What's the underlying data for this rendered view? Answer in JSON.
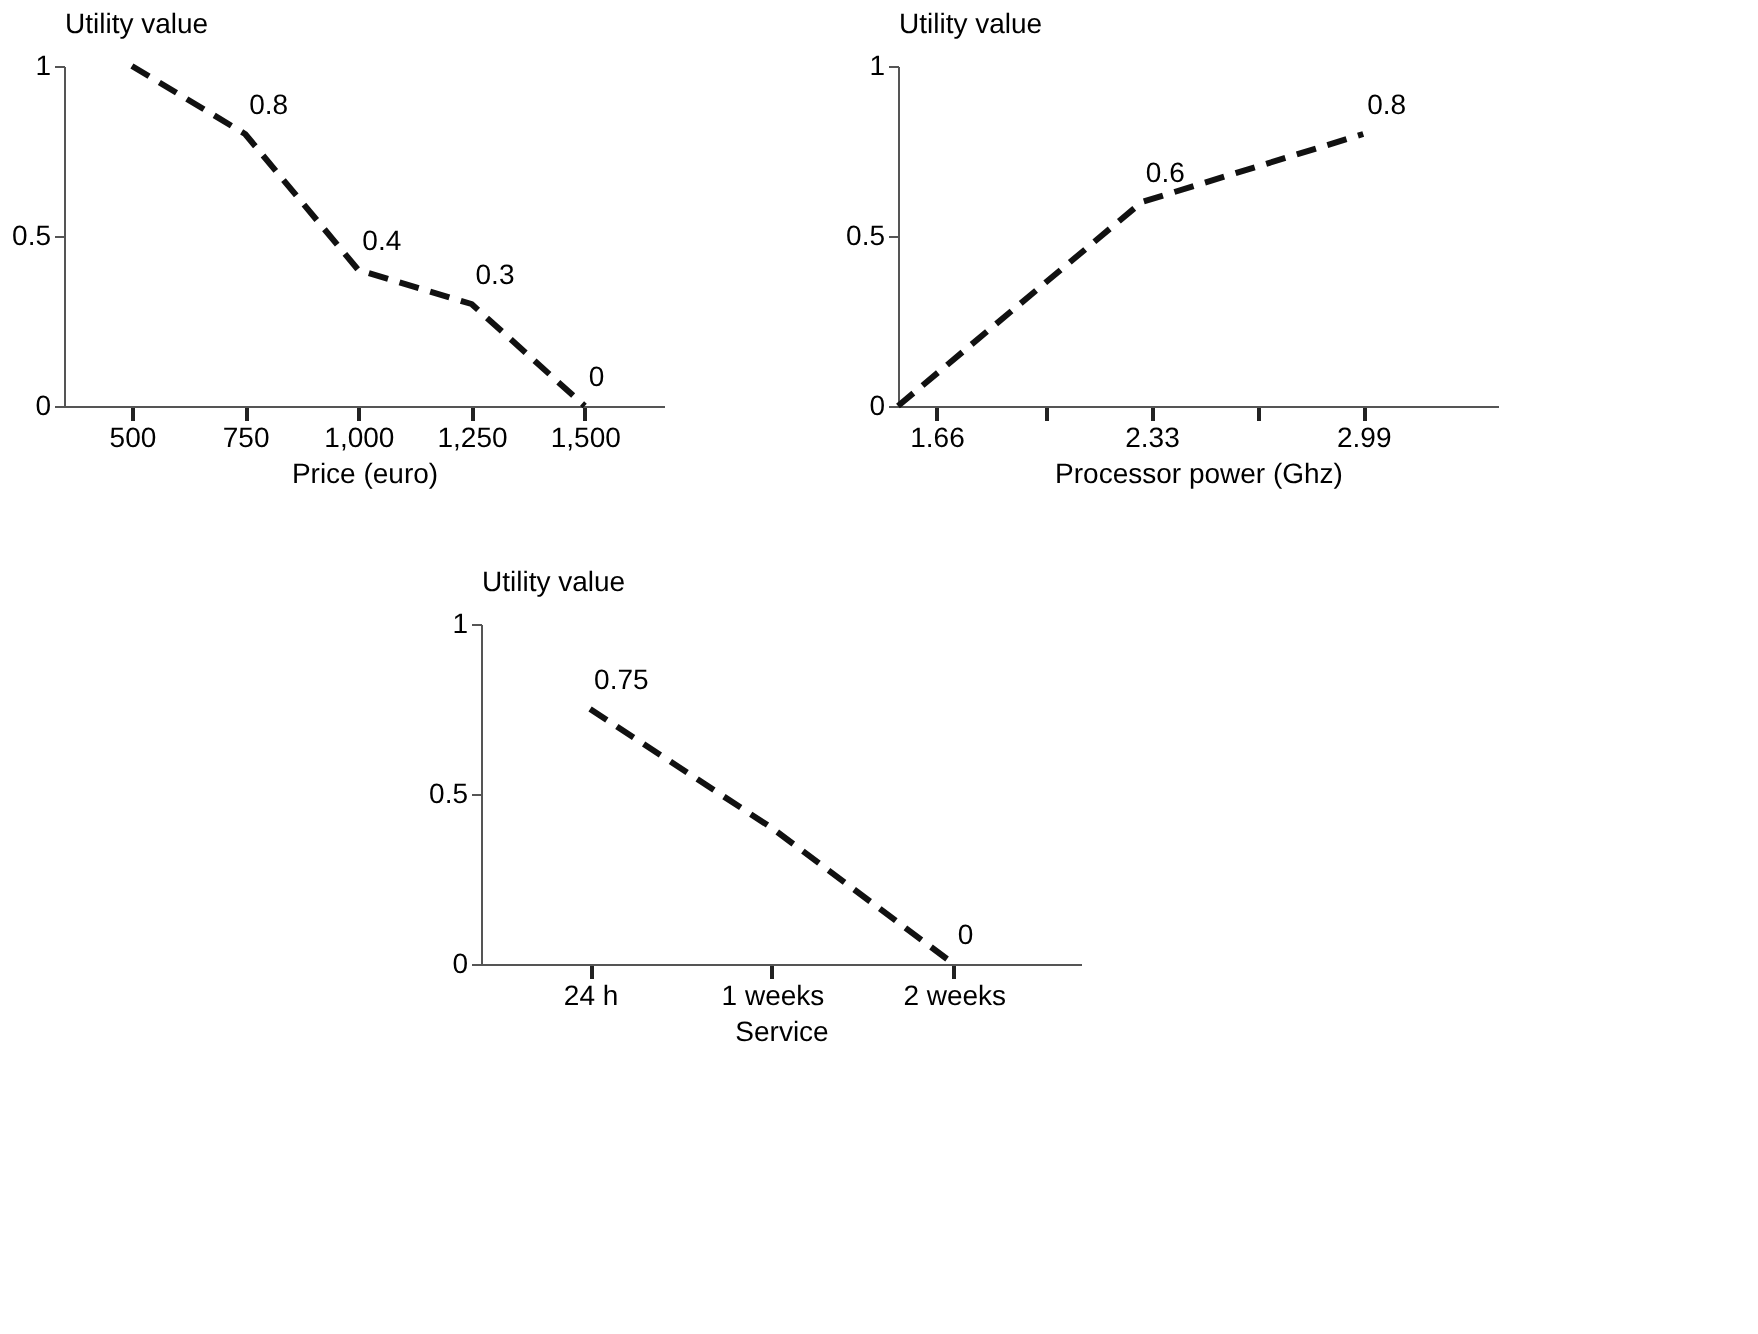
{
  "chart_data": [
    {
      "type": "line",
      "ylabel": "Utility value",
      "xlabel": "Price (euro)",
      "categories": [
        "500",
        "750",
        "1,000",
        "1,250",
        "1,500"
      ],
      "values": [
        1,
        0.8,
        0.4,
        0.3,
        0
      ],
      "value_labels": [
        null,
        "0.8",
        "0.4",
        "0.3",
        "0"
      ],
      "color": "#111111",
      "ylim": [
        0,
        1
      ],
      "yticks": [
        0,
        0.5,
        1
      ],
      "grid": false,
      "line_style": "dashed",
      "marker": "none"
    },
    {
      "type": "line",
      "ylabel": "Utility value",
      "xlabel": "Processor power (Ghz)",
      "x": [
        1.54,
        2.3,
        2.99
      ],
      "values": [
        0,
        0.6,
        0.8
      ],
      "value_labels": [
        null,
        "0.6",
        "0.8"
      ],
      "color": "#111111",
      "xlim": [
        1.54,
        3.41
      ],
      "xticks": [
        1.66,
        {
          "value": 2.0,
          "label": null
        },
        2.33,
        {
          "value": 2.66,
          "label": null
        },
        2.99
      ],
      "ylim": [
        0,
        1
      ],
      "yticks": [
        0,
        0.5,
        1
      ],
      "grid": false,
      "line_style": "dashed",
      "marker": "none"
    },
    {
      "type": "line",
      "ylabel": "Utility value",
      "xlabel": "Service",
      "categories": [
        "24 h",
        "1 weeks",
        "2 weeks"
      ],
      "values": [
        0.75,
        0.4,
        0
      ],
      "value_labels": [
        "0.75",
        null,
        "0"
      ],
      "color": "#111111",
      "ylim": [
        0,
        1
      ],
      "yticks": [
        0,
        0.5,
        1
      ],
      "grid": false,
      "line_style": "dashed",
      "marker": "none"
    }
  ]
}
